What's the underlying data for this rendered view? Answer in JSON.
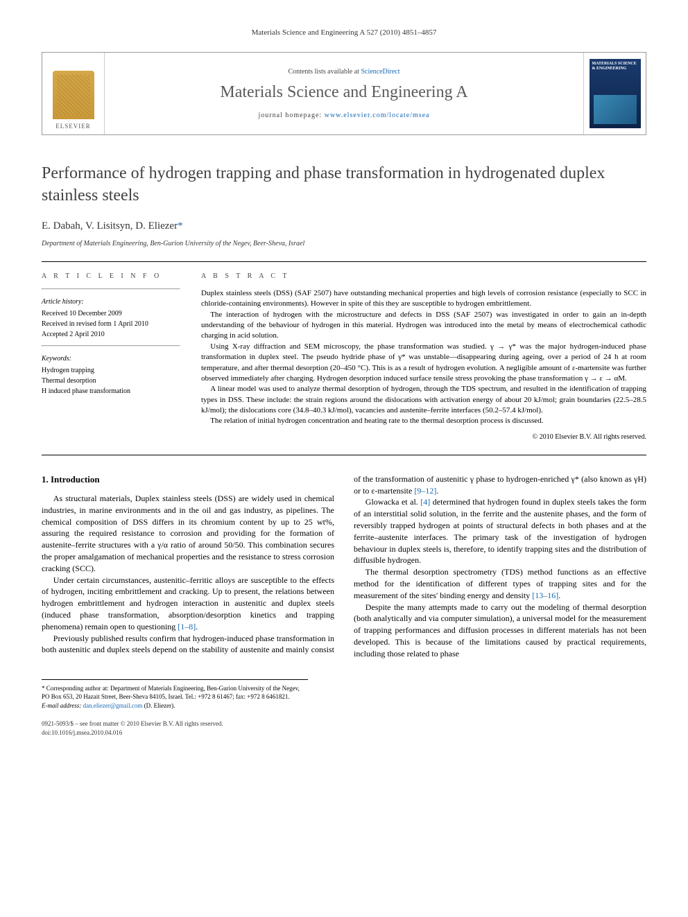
{
  "running_header": "Materials Science and Engineering A 527 (2010) 4851–4857",
  "banner": {
    "publisher": "ELSEVIER",
    "contents_prefix": "Contents lists available at ",
    "contents_link": "ScienceDirect",
    "journal_name": "Materials Science and Engineering A",
    "homepage_prefix": "journal homepage: ",
    "homepage_url": "www.elsevier.com/locate/msea",
    "cover_title": "MATERIALS SCIENCE & ENGINEERING"
  },
  "title": "Performance of hydrogen trapping and phase transformation in hydrogenated duplex stainless steels",
  "authors": "E. Dabah, V. Lisitsyn, D. Eliezer",
  "corr_mark": "*",
  "affiliation": "Department of Materials Engineering, Ben-Gurion University of the Negev, Beer-Sheva, Israel",
  "info": {
    "heading": "A R T I C L E   I N F O",
    "history_label": "Article history:",
    "received": "Received 10 December 2009",
    "revised": "Received in revised form 1 April 2010",
    "accepted": "Accepted 2 April 2010",
    "keywords_label": "Keywords:",
    "kw1": "Hydrogen trapping",
    "kw2": "Thermal desorption",
    "kw3": "H induced phase transformation"
  },
  "abstract": {
    "heading": "A B S T R A C T",
    "p1": "Duplex stainless steels (DSS) (SAF 2507) have outstanding mechanical properties and high levels of corrosion resistance (especially to SCC in chloride-containing environments). However in spite of this they are susceptible to hydrogen embrittlement.",
    "p2": "The interaction of hydrogen with the microstructure and defects in DSS (SAF 2507) was investigated in order to gain an in-depth understanding of the behaviour of hydrogen in this material. Hydrogen was introduced into the metal by means of electrochemical cathodic charging in acid solution.",
    "p3": "Using X-ray diffraction and SEM microscopy, the phase transformation was studied. γ → γ* was the major hydrogen-induced phase transformation in duplex steel. The pseudo hydride phase of γ* was unstable—disappearing during ageing, over a period of 24 h at room temperature, and after thermal desorption (20–450 °C). This is as a result of hydrogen evolution. A negligible amount of ε-martensite was further observed immediately after charging. Hydrogen desorption induced surface tensile stress provoking the phase transformation γ → ε → αM.",
    "p4": "A linear model was used to analyze thermal desorption of hydrogen, through the TDS spectrum, and resulted in the identification of trapping types in DSS. These include: the strain regions around the dislocations with activation energy of about 20 kJ/mol; grain boundaries (22.5–28.5 kJ/mol); the dislocations core (34.8–40.3 kJ/mol), vacancies and austenite–ferrite interfaces (50.2–57.4 kJ/mol).",
    "p5": "The relation of initial hydrogen concentration and heating rate to the thermal desorption process is discussed.",
    "copyright": "© 2010 Elsevier B.V. All rights reserved."
  },
  "body": {
    "section_heading": "1. Introduction",
    "p1": "As structural materials, Duplex stainless steels (DSS) are widely used in chemical industries, in marine environments and in the oil and gas industry, as pipelines. The chemical composition of DSS differs in its chromium content by up to 25 wt%, assuring the required resistance to corrosion and providing for the formation of austenite–ferrite structures with a γ/α ratio of around 50/50. This combination secures the proper amalgamation of mechanical properties and the resistance to stress corrosion cracking (SCC).",
    "p2_a": "Under certain circumstances, austenitic–ferritic alloys are susceptible to the effects of hydrogen, inciting embrittlement and cracking. Up to present, the relations between hydrogen embrittlement and hydrogen interaction in austenitic and duplex steels (induced phase transformation, absorption/desorption kinetics and trapping phenomena) remain open to questioning ",
    "p2_ref": "[1–8]",
    "p2_b": ".",
    "p3_a": "Previously published results confirm that hydrogen-induced phase transformation in both austenitic and duplex steels depend on the stability of austenite and mainly consist of the transformation of austenitic γ phase to hydrogen-enriched γ* (also known as γH) or to ε-martensite ",
    "p3_ref": "[9–12]",
    "p3_b": ".",
    "p4_a": "Glowacka et al. ",
    "p4_ref": "[4]",
    "p4_b": " determined that hydrogen found in duplex steels takes the form of an interstitial solid solution, in the ferrite and the austenite phases, and the form of reversibly trapped hydrogen at points of structural defects in both phases and at the ferrite–austenite interfaces. The primary task of the investigation of hydrogen behaviour in duplex steels is, therefore, to identify trapping sites and the distribution of diffusible hydrogen.",
    "p5_a": "The thermal desorption spectrometry (TDS) method functions as an effective method for the identification of different types of trapping sites and for the measurement of the sites' binding energy and density ",
    "p5_ref": "[13–16]",
    "p5_b": ".",
    "p6": "Despite the many attempts made to carry out the modeling of thermal desorption (both analytically and via computer simulation), a universal model for the measurement of trapping performances and diffusion processes in different materials has not been developed. This is because of the limitations caused by practical requirements, including those related to phase"
  },
  "footnotes": {
    "corr": "* Corresponding author at: Department of Materials Engineering, Ben-Gurion University of the Negev, PO Box 653, 20 Hazait Street, Beer-Sheva 84105, Israel. Tel.: +972 8 61467; fax: +972 8 6461821.",
    "email_label": "E-mail address: ",
    "email": "dan.eliezer@gmail.com",
    "email_suffix": " (D. Eliezer)."
  },
  "footer": {
    "issn": "0921-5093/$ – see front matter © 2010 Elsevier B.V. All rights reserved.",
    "doi": "doi:10.1016/j.msea.2010.04.016"
  },
  "colors": {
    "link": "#1768b3",
    "title_gray": "#424242",
    "banner_border": "#999999"
  }
}
